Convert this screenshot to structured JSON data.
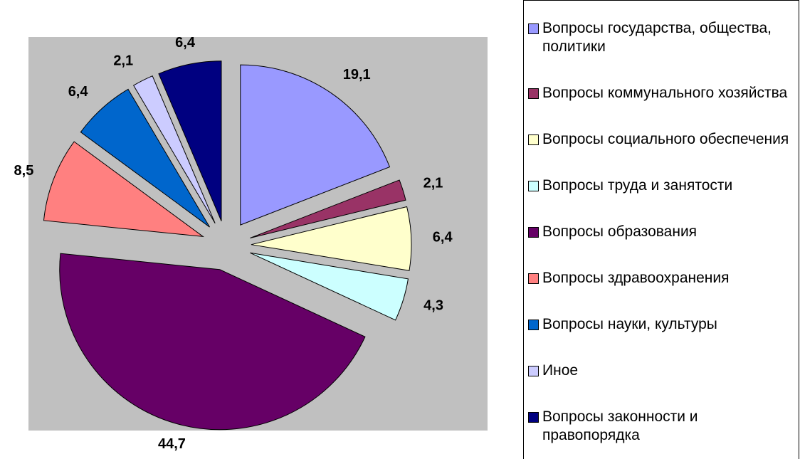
{
  "chart_data": {
    "type": "pie",
    "categories": [
      "Вопросы государства, общества, политики",
      "Вопросы коммунального хозяйства",
      "Вопросы социального обеспечения",
      "Вопросы труда и занятости",
      "Вопросы образования",
      "Вопросы здравоохранения",
      "Вопросы науки, культуры",
      "Иное",
      "Вопросы законности и правопорядка"
    ],
    "values": [
      19.1,
      2.1,
      6.4,
      4.3,
      44.7,
      8.5,
      6.4,
      2.1,
      6.4
    ],
    "value_labels": [
      "19,1",
      "2,1",
      "6,4",
      "4,3",
      "44,7",
      "8,5",
      "6,4",
      "2,1",
      "6,4"
    ],
    "colors": [
      "#9999ff",
      "#993366",
      "#ffffcc",
      "#ccffff",
      "#660066",
      "#ff8080",
      "#0066cc",
      "#ccccff",
      "#000080"
    ],
    "legend": "right"
  }
}
